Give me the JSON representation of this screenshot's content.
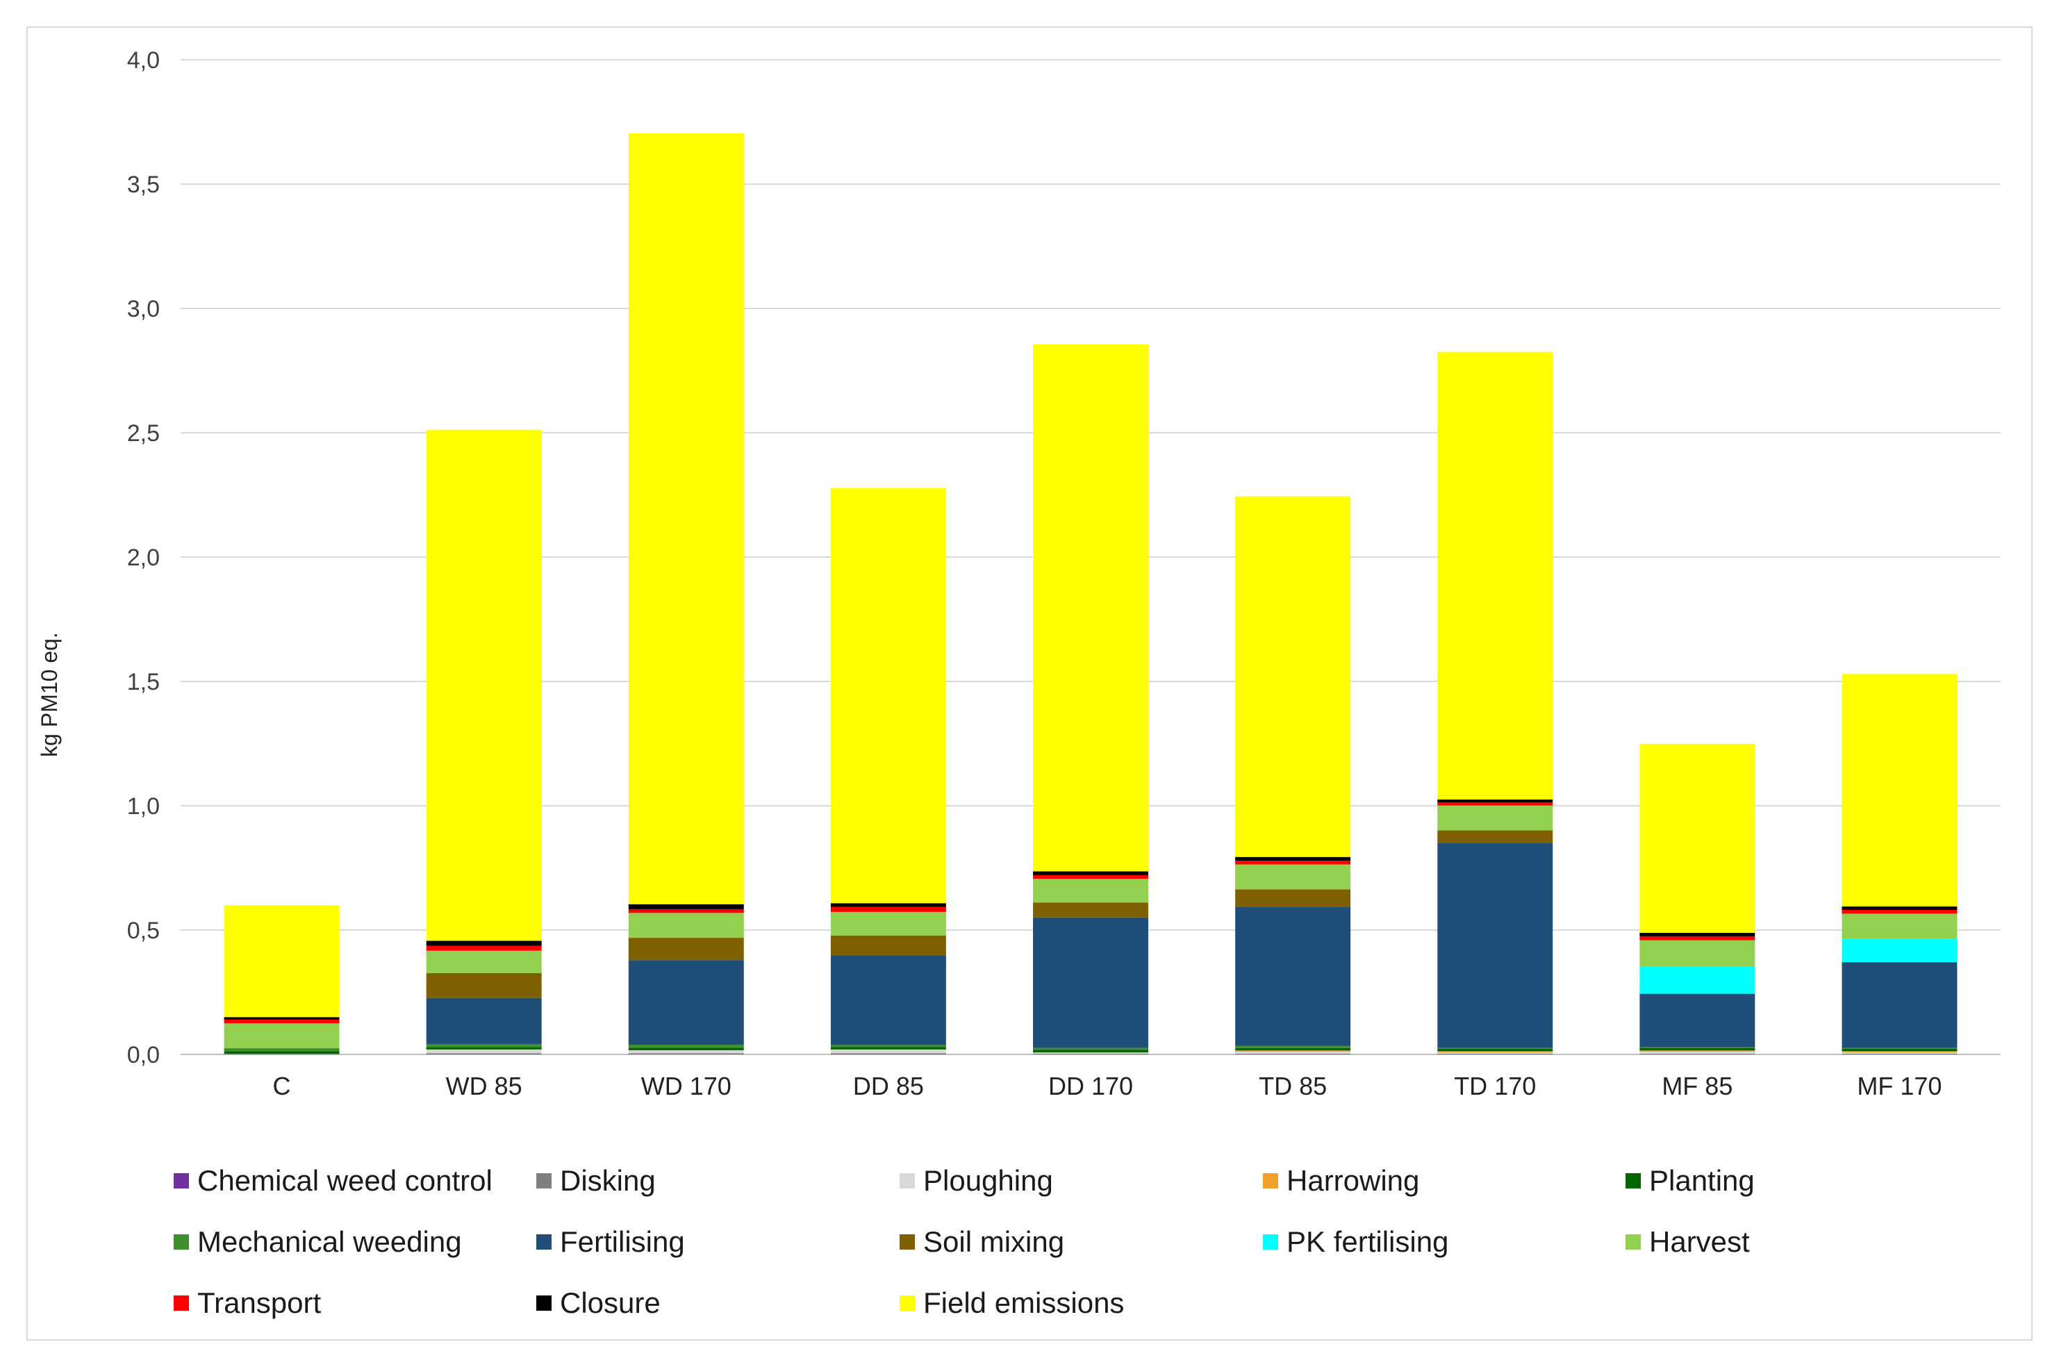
{
  "chart_data": {
    "type": "bar",
    "stacked": true,
    "title": "",
    "xlabel": "",
    "ylabel": "kg PM10 eq.",
    "ylim": [
      0,
      4
    ],
    "ytick_values": [
      0,
      0.5,
      1,
      1.5,
      2,
      2.5,
      3,
      3.5,
      4
    ],
    "ytick_labels": [
      "0,0",
      "0,5",
      "1,0",
      "1,5",
      "2,0",
      "2,5",
      "3,0",
      "3,5",
      "4,0"
    ],
    "grid": true,
    "legend_position": "bottom",
    "categories": [
      "C",
      "WD 85",
      "WD 170",
      "DD 85",
      "DD 170",
      "TD 85",
      "TD 170",
      "MF 85",
      "MF 170"
    ],
    "series": [
      {
        "name": "Chemical weed control",
        "color": "#7030a0",
        "values": [
          0,
          0,
          0,
          0,
          0,
          0,
          0,
          0,
          0
        ]
      },
      {
        "name": "Disking",
        "color": "#7f7f7f",
        "values": [
          0.003,
          0.005,
          0.005,
          0.005,
          0.003,
          0.003,
          0.003,
          0.003,
          0.003
        ]
      },
      {
        "name": "Ploughing",
        "color": "#d9d9d9",
        "values": [
          0,
          0.015,
          0.012,
          0.015,
          0.005,
          0.008,
          0.005,
          0.008,
          0.005
        ]
      },
      {
        "name": "Harrowing",
        "color": "#f4a02a",
        "values": [
          0,
          0,
          0,
          0,
          0,
          0.005,
          0.005,
          0.005,
          0.005
        ]
      },
      {
        "name": "Planting",
        "color": "#006400",
        "values": [
          0.01,
          0.01,
          0.01,
          0.01,
          0.01,
          0.01,
          0.01,
          0.01,
          0.01
        ]
      },
      {
        "name": "Mechanical weeding",
        "color": "#3f8f2f",
        "values": [
          0.012,
          0.012,
          0.012,
          0.008,
          0.008,
          0.008,
          0.003,
          0.003,
          0.003
        ]
      },
      {
        "name": "Fertilising",
        "color": "#1f4e79",
        "values": [
          0,
          0.185,
          0.34,
          0.36,
          0.525,
          0.56,
          0.825,
          0.215,
          0.345
        ]
      },
      {
        "name": "Soil mixing",
        "color": "#7f6000",
        "values": [
          0,
          0.1,
          0.09,
          0.08,
          0.06,
          0.07,
          0.05,
          0,
          0
        ]
      },
      {
        "name": "PK fertilising",
        "color": "#00ffff",
        "values": [
          0,
          0,
          0,
          0,
          0,
          0,
          0,
          0.11,
          0.095
        ]
      },
      {
        "name": "Harvest",
        "color": "#92d050",
        "values": [
          0.1,
          0.09,
          0.1,
          0.095,
          0.095,
          0.1,
          0.1,
          0.105,
          0.1
        ]
      },
      {
        "name": "Transport",
        "color": "#ff0000",
        "values": [
          0.015,
          0.02,
          0.015,
          0.02,
          0.015,
          0.015,
          0.012,
          0.015,
          0.015
        ]
      },
      {
        "name": "Closure",
        "color": "#000000",
        "values": [
          0.01,
          0.02,
          0.02,
          0.015,
          0.015,
          0.015,
          0.012,
          0.015,
          0.014
        ]
      },
      {
        "name": "Field emissions",
        "color": "#ffff00",
        "values": [
          0.45,
          2.055,
          3.1,
          1.67,
          2.12,
          1.45,
          1.8,
          0.76,
          0.935
        ]
      }
    ]
  }
}
